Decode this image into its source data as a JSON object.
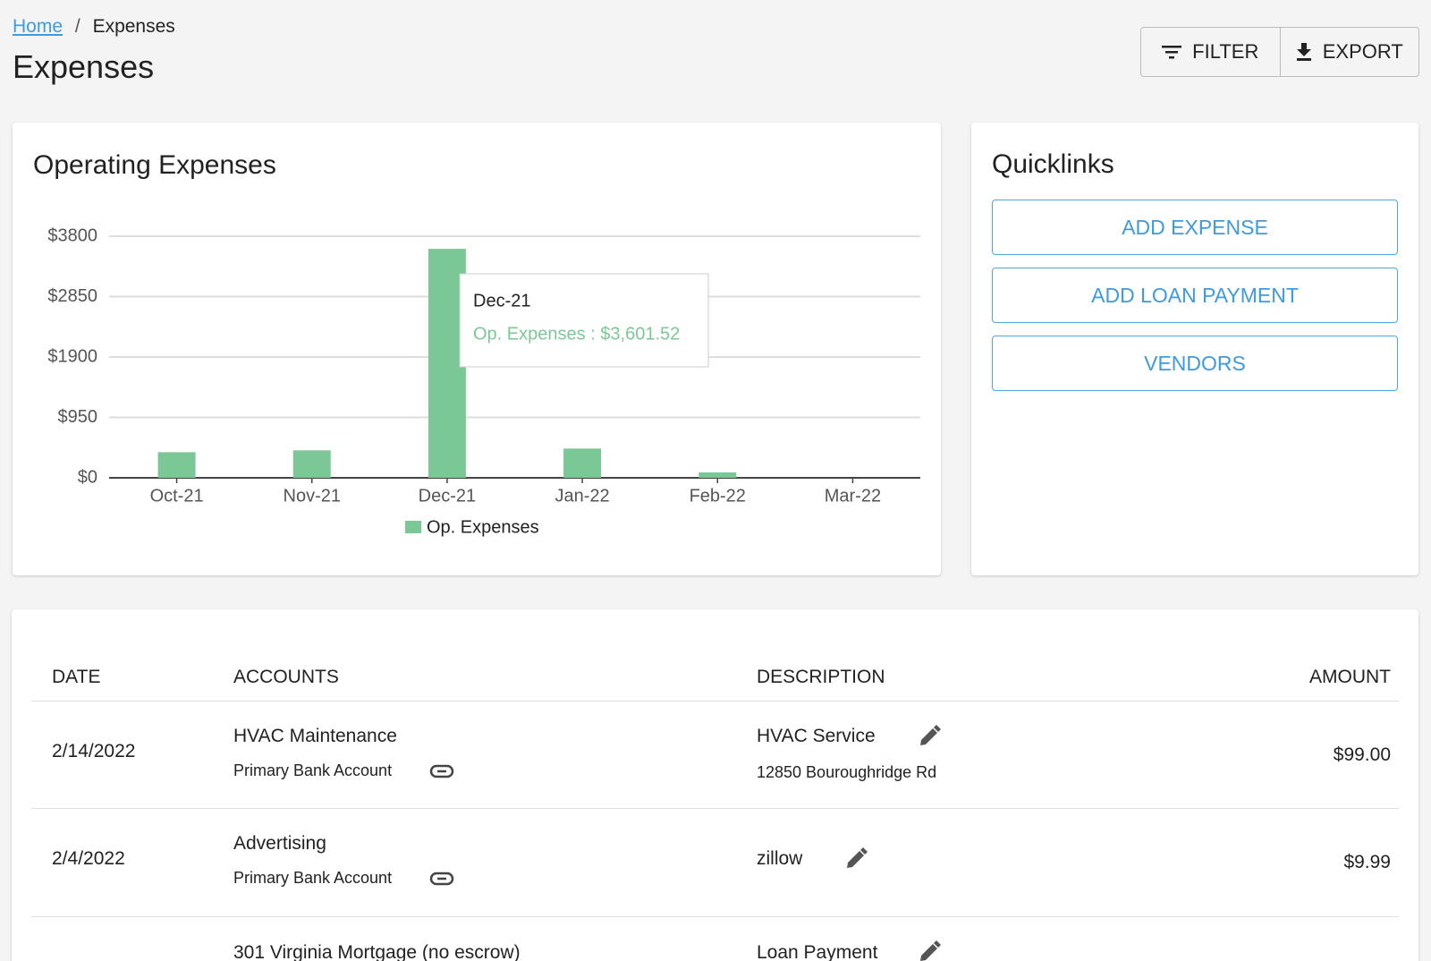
{
  "breadcrumb": {
    "home": "Home",
    "separator": "/",
    "current": "Expenses"
  },
  "header": {
    "title": "Expenses",
    "filter": "FILTER",
    "export": "EXPORT"
  },
  "chart_data": {
    "type": "bar",
    "title": "Operating Expenses",
    "categories": [
      "Oct-21",
      "Nov-21",
      "Dec-21",
      "Jan-22",
      "Feb-22",
      "Mar-22"
    ],
    "series": [
      {
        "name": "Op. Expenses",
        "color": "#7bc896",
        "values": [
          403,
          432,
          3601.52,
          460,
          86,
          0
        ]
      }
    ],
    "ylim": [
      0,
      3800
    ],
    "yticks": [
      {
        "value": 0,
        "label": "$0"
      },
      {
        "value": 950,
        "label": "$950"
      },
      {
        "value": 1900,
        "label": "$1900"
      },
      {
        "value": 2850,
        "label": "$2850"
      },
      {
        "value": 3800,
        "label": "$3800"
      }
    ],
    "grid": true,
    "tooltip": {
      "title": "Dec-21",
      "text": "Op. Expenses : $3,601.52"
    }
  },
  "quicklinks": {
    "title": "Quicklinks",
    "links": [
      "ADD EXPENSE",
      "ADD LOAN PAYMENT",
      "VENDORS"
    ]
  },
  "table": {
    "headers": [
      "DATE",
      "ACCOUNTS",
      "DESCRIPTION",
      "AMOUNT"
    ],
    "rows": [
      {
        "date": "2/14/2022",
        "account": "HVAC Maintenance",
        "bank": "Primary Bank Account",
        "description": "HVAC Service",
        "address": "12850 Bouroughridge Rd",
        "amount": "$99.00"
      },
      {
        "date": "2/4/2022",
        "account": "Advertising",
        "bank": "Primary Bank Account",
        "description": "zillow",
        "amount": "$9.99"
      },
      {
        "account": "301 Virginia Mortgage (no escrow)",
        "description": "Loan Payment"
      }
    ]
  }
}
